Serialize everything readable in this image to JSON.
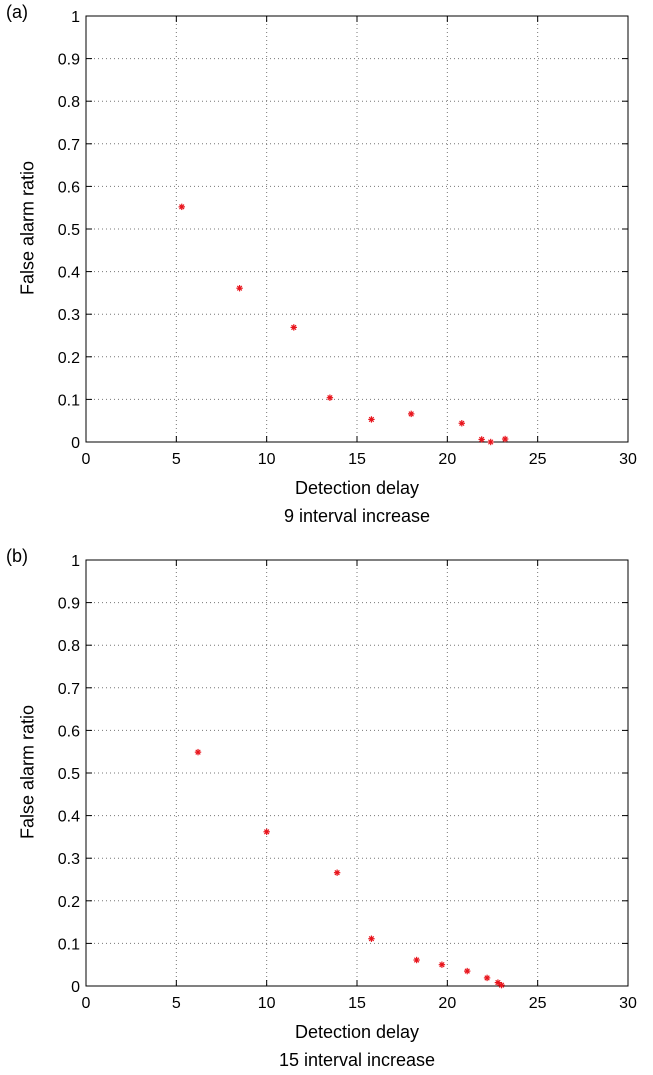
{
  "chart_data": [
    {
      "type": "scatter",
      "panel_label": "(a)",
      "xlabel": "Detection delay",
      "subtitle": "9 interval increase",
      "ylabel": "False alarm ratio",
      "xlim": [
        0,
        30
      ],
      "ylim": [
        0,
        1
      ],
      "xticks": [
        0,
        5,
        10,
        15,
        20,
        25,
        30
      ],
      "yticks": [
        0,
        0.1,
        0.2,
        0.3,
        0.4,
        0.5,
        0.6,
        0.7,
        0.8,
        0.9,
        1
      ],
      "grid": true,
      "marker": "*",
      "color": "#e8141c",
      "points": [
        {
          "x": 5.3,
          "y": 0.552
        },
        {
          "x": 8.5,
          "y": 0.361
        },
        {
          "x": 11.5,
          "y": 0.269
        },
        {
          "x": 13.5,
          "y": 0.104
        },
        {
          "x": 15.8,
          "y": 0.053
        },
        {
          "x": 18.0,
          "y": 0.066
        },
        {
          "x": 20.8,
          "y": 0.044
        },
        {
          "x": 21.9,
          "y": 0.006
        },
        {
          "x": 22.4,
          "y": 0.0
        },
        {
          "x": 23.2,
          "y": 0.007
        }
      ]
    },
    {
      "type": "scatter",
      "panel_label": "(b)",
      "xlabel": "Detection delay",
      "subtitle": "15 interval increase",
      "ylabel": "False alarm ratio",
      "xlim": [
        0,
        30
      ],
      "ylim": [
        0,
        1
      ],
      "xticks": [
        0,
        5,
        10,
        15,
        20,
        25,
        30
      ],
      "yticks": [
        0,
        0.1,
        0.2,
        0.3,
        0.4,
        0.5,
        0.6,
        0.7,
        0.8,
        0.9,
        1
      ],
      "grid": true,
      "marker": "*",
      "color": "#e8141c",
      "points": [
        {
          "x": 6.2,
          "y": 0.549
        },
        {
          "x": 10.0,
          "y": 0.362
        },
        {
          "x": 13.9,
          "y": 0.266
        },
        {
          "x": 15.8,
          "y": 0.111
        },
        {
          "x": 18.3,
          "y": 0.061
        },
        {
          "x": 19.7,
          "y": 0.05
        },
        {
          "x": 21.1,
          "y": 0.035
        },
        {
          "x": 22.2,
          "y": 0.019
        },
        {
          "x": 22.8,
          "y": 0.008
        },
        {
          "x": 23.0,
          "y": 0.002
        }
      ]
    }
  ]
}
